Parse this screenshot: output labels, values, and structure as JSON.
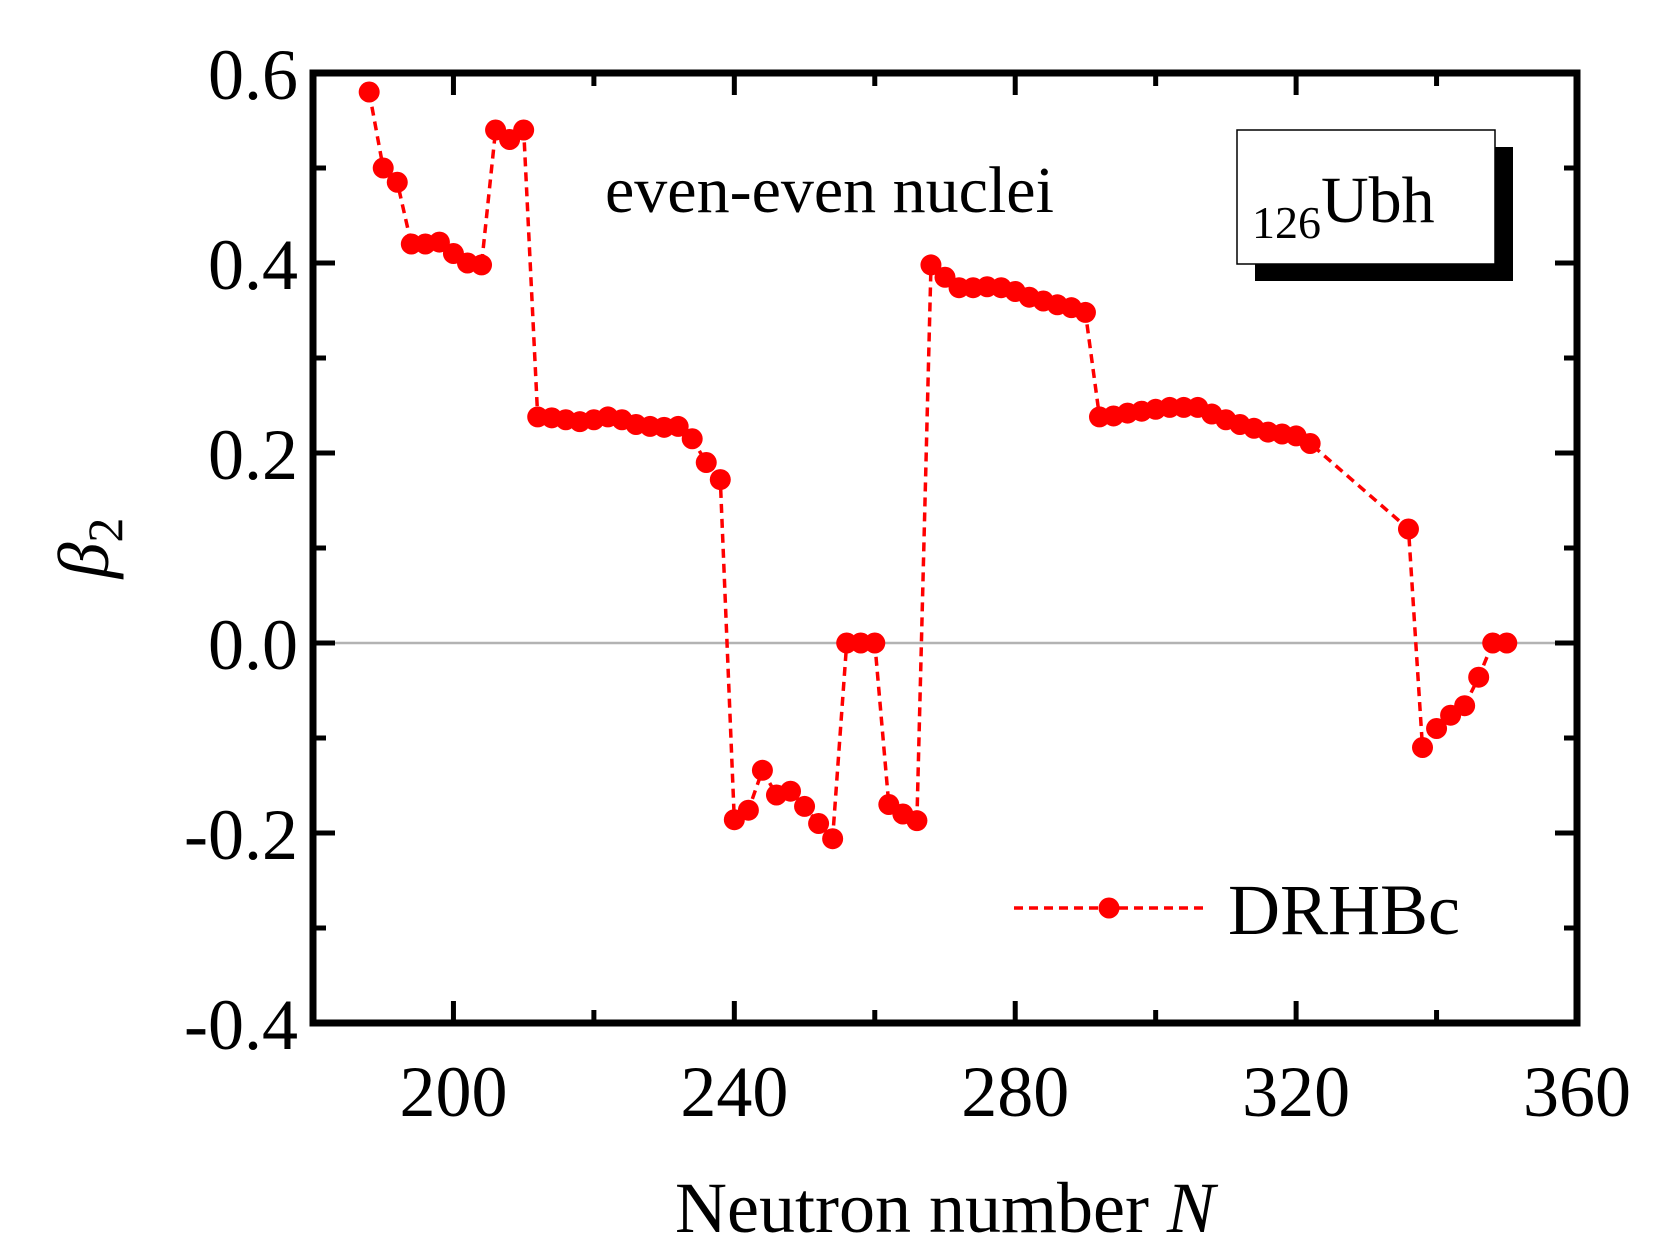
{
  "chart_data": {
    "type": "line",
    "xlabel": "Neutron number",
    "xlabel_var": "N",
    "ylabel_symbol": "β",
    "ylabel_sub": "2",
    "xlim": [
      180,
      360
    ],
    "ylim": [
      -0.4,
      0.6
    ],
    "xticks": [
      200,
      240,
      280,
      320,
      360
    ],
    "yticks": [
      -0.4,
      -0.2,
      0.0,
      0.2,
      0.4,
      0.6
    ],
    "xtick_labels": [
      "200",
      "240",
      "280",
      "320",
      "360"
    ],
    "ytick_labels": [
      "-0.4",
      "-0.2",
      "0.0",
      "0.2",
      "0.4",
      "0.6"
    ],
    "zero_line": true,
    "annotation": "even-even nuclei",
    "element_label": {
      "subscript": "126",
      "symbol": "Ubh"
    },
    "legend_position": "bottom-right",
    "colors": {
      "series": "#ff0000",
      "zero_line": "#b3b3b3",
      "axes": "#000000"
    },
    "series": [
      {
        "name": "DRHBc",
        "style": "dashed-line-with-circles",
        "x": [
          188,
          190,
          192,
          194,
          196,
          198,
          200,
          202,
          204,
          206,
          208,
          210,
          212,
          214,
          216,
          218,
          220,
          222,
          224,
          226,
          228,
          230,
          232,
          234,
          236,
          238,
          240,
          242,
          244,
          246,
          248,
          250,
          252,
          254,
          256,
          258,
          260,
          262,
          264,
          266,
          268,
          270,
          272,
          274,
          276,
          278,
          280,
          282,
          284,
          286,
          288,
          290,
          292,
          294,
          296,
          298,
          300,
          302,
          304,
          306,
          308,
          310,
          312,
          314,
          316,
          318,
          320,
          322,
          336,
          338,
          340,
          342,
          344,
          346,
          348,
          350
        ],
        "y": [
          0.58,
          0.5,
          0.485,
          0.42,
          0.42,
          0.422,
          0.41,
          0.4,
          0.398,
          0.54,
          0.53,
          0.54,
          0.238,
          0.237,
          0.235,
          0.233,
          0.235,
          0.238,
          0.235,
          0.23,
          0.228,
          0.227,
          0.228,
          0.215,
          0.19,
          0.172,
          -0.186,
          -0.176,
          -0.134,
          -0.16,
          -0.156,
          -0.172,
          -0.19,
          -0.206,
          0.0,
          0.0,
          0.0,
          -0.17,
          -0.18,
          -0.187,
          0.398,
          0.385,
          0.374,
          0.374,
          0.375,
          0.374,
          0.37,
          0.364,
          0.36,
          0.356,
          0.353,
          0.348,
          0.238,
          0.239,
          0.242,
          0.244,
          0.246,
          0.248,
          0.248,
          0.248,
          0.241,
          0.235,
          0.23,
          0.226,
          0.222,
          0.22,
          0.218,
          0.21,
          0.12,
          -0.11,
          -0.09,
          -0.076,
          -0.066,
          -0.036,
          0.0,
          0.0
        ]
      }
    ]
  }
}
